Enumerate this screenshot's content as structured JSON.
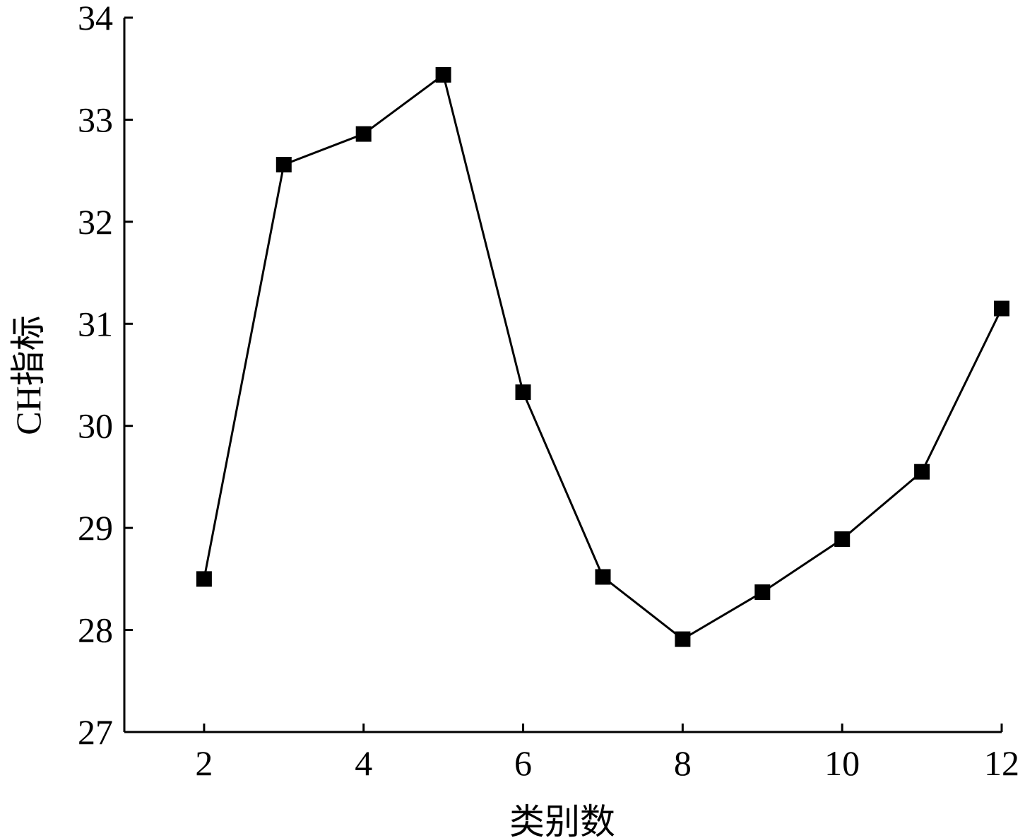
{
  "chart_data": {
    "type": "line",
    "xlabel": "类别数",
    "ylabel": "CH指标",
    "xlim": [
      1,
      12
    ],
    "ylim": [
      27,
      34
    ],
    "xticks": [
      2,
      4,
      6,
      8,
      10,
      12
    ],
    "yticks": [
      27,
      28,
      29,
      30,
      31,
      32,
      33,
      34
    ],
    "grid": false,
    "legend": "none",
    "marker": "square",
    "line_color": "#000000",
    "series": [
      {
        "x": [
          2,
          3,
          4,
          5,
          6,
          7,
          8,
          9,
          10,
          11,
          12
        ],
        "y": [
          28.5,
          32.56,
          32.86,
          33.44,
          30.33,
          28.52,
          27.91,
          28.37,
          28.89,
          29.55,
          31.15
        ]
      }
    ]
  }
}
